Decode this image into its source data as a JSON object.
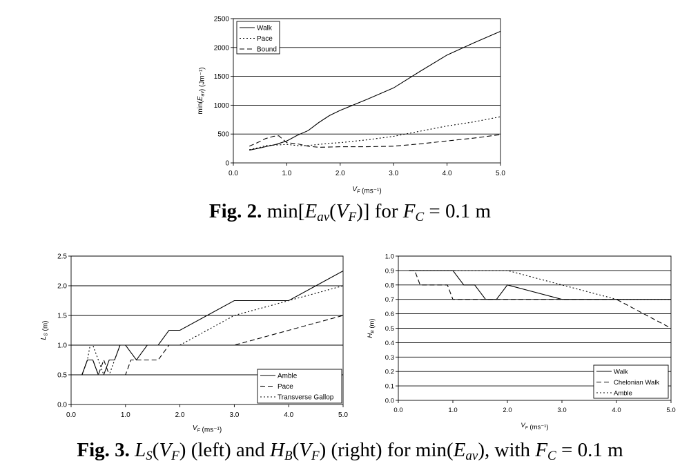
{
  "chart_data": [
    {
      "type": "line",
      "title": "",
      "xlabel": "V_F (ms⁻¹)",
      "ylabel": "min(E_av) (Jm⁻¹)",
      "xlim": [
        0,
        5
      ],
      "ylim": [
        0,
        2500
      ],
      "xticks": [
        "0.0",
        "1.0",
        "2.0",
        "3.0",
        "4.0",
        "5.0"
      ],
      "yticks": [
        "0",
        "500",
        "1000",
        "1500",
        "2000",
        "2500"
      ],
      "grid": "horizontal",
      "legend": "top-left",
      "series": [
        {
          "name": "Walk",
          "style": "solid",
          "points": [
            [
              0.3,
              220
            ],
            [
              0.5,
              260
            ],
            [
              0.7,
              300
            ],
            [
              0.8,
              320
            ],
            [
              0.9,
              350
            ],
            [
              1.0,
              380
            ],
            [
              1.2,
              480
            ],
            [
              1.4,
              560
            ],
            [
              1.6,
              700
            ],
            [
              1.8,
              820
            ],
            [
              2.0,
              910
            ],
            [
              2.5,
              1100
            ],
            [
              3.0,
              1300
            ],
            [
              3.5,
              1590
            ],
            [
              4.0,
              1870
            ],
            [
              4.5,
              2080
            ],
            [
              5.0,
              2280
            ]
          ]
        },
        {
          "name": "Pace",
          "style": "dotted",
          "points": [
            [
              0.3,
              230
            ],
            [
              0.5,
              270
            ],
            [
              0.6,
              300
            ],
            [
              0.8,
              310
            ],
            [
              1.0,
              320
            ],
            [
              1.2,
              300
            ],
            [
              1.4,
              300
            ],
            [
              1.6,
              320
            ],
            [
              1.8,
              340
            ],
            [
              2.0,
              350
            ],
            [
              2.5,
              400
            ],
            [
              3.0,
              460
            ],
            [
              3.5,
              550
            ],
            [
              4.0,
              640
            ],
            [
              4.5,
              710
            ],
            [
              5.0,
              800
            ]
          ]
        },
        {
          "name": "Bound",
          "style": "dashed",
          "points": [
            [
              0.3,
              290
            ],
            [
              0.45,
              350
            ],
            [
              0.6,
              420
            ],
            [
              0.75,
              460
            ],
            [
              0.85,
              470
            ],
            [
              1.0,
              350
            ],
            [
              1.2,
              330
            ],
            [
              1.4,
              290
            ],
            [
              1.6,
              270
            ],
            [
              2.0,
              280
            ],
            [
              2.5,
              280
            ],
            [
              3.0,
              290
            ],
            [
              3.5,
              330
            ],
            [
              4.0,
              380
            ],
            [
              4.5,
              430
            ],
            [
              5.0,
              490
            ]
          ]
        }
      ]
    },
    {
      "type": "line",
      "title": "",
      "xlabel": "V_F (ms⁻¹)",
      "ylabel": "L_S (m)",
      "xlim": [
        0,
        5
      ],
      "ylim": [
        0,
        2.5
      ],
      "xticks": [
        "0.0",
        "1.0",
        "2.0",
        "3.0",
        "4.0",
        "5.0"
      ],
      "yticks": [
        "0.0",
        "0.5",
        "1.0",
        "1.5",
        "2.0",
        "2.5"
      ],
      "grid": "horizontal",
      "legend": "bottom-right",
      "series": [
        {
          "name": "Amble",
          "style": "solid",
          "points": [
            [
              0.2,
              0.5
            ],
            [
              0.3,
              0.75
            ],
            [
              0.4,
              0.75
            ],
            [
              0.5,
              0.5
            ],
            [
              0.6,
              0.5
            ],
            [
              0.7,
              0.75
            ],
            [
              0.8,
              0.75
            ],
            [
              0.9,
              1.0
            ],
            [
              1.0,
              1.0
            ],
            [
              1.2,
              0.75
            ],
            [
              1.4,
              1.0
            ],
            [
              1.6,
              1.0
            ],
            [
              1.8,
              1.25
            ],
            [
              2.0,
              1.25
            ],
            [
              2.5,
              1.5
            ],
            [
              3.0,
              1.75
            ],
            [
              3.5,
              1.75
            ],
            [
              4.0,
              1.75
            ],
            [
              4.5,
              2.0
            ],
            [
              5.0,
              2.25
            ]
          ]
        },
        {
          "name": "Pace",
          "style": "dashed",
          "points": [
            [
              0.2,
              0.5
            ],
            [
              0.3,
              0.75
            ],
            [
              0.4,
              0.75
            ],
            [
              0.5,
              0.5
            ],
            [
              0.6,
              0.75
            ],
            [
              0.7,
              0.5
            ],
            [
              0.8,
              0.5
            ],
            [
              1.0,
              0.5
            ],
            [
              1.1,
              0.75
            ],
            [
              1.2,
              0.75
            ],
            [
              1.6,
              0.75
            ],
            [
              1.8,
              1.0
            ],
            [
              2.0,
              1.0
            ],
            [
              2.5,
              1.0
            ],
            [
              3.0,
              1.0
            ],
            [
              3.5,
              1.125
            ],
            [
              4.0,
              1.25
            ],
            [
              4.5,
              1.375
            ],
            [
              5.0,
              1.5
            ]
          ]
        },
        {
          "name": "Transverse Gallop",
          "style": "dotted",
          "points": [
            [
              0.2,
              0.5
            ],
            [
              0.3,
              0.75
            ],
            [
              0.35,
              1.0
            ],
            [
              0.4,
              1.0
            ],
            [
              0.5,
              0.75
            ],
            [
              0.6,
              0.5
            ],
            [
              0.7,
              0.5
            ],
            [
              0.8,
              0.75
            ],
            [
              0.9,
              1.0
            ],
            [
              1.0,
              1.0
            ],
            [
              1.5,
              1.0
            ],
            [
              2.0,
              1.0
            ],
            [
              2.5,
              1.25
            ],
            [
              3.0,
              1.5
            ],
            [
              3.5,
              1.625
            ],
            [
              4.0,
              1.75
            ],
            [
              4.5,
              1.875
            ],
            [
              5.0,
              2.0
            ]
          ]
        }
      ]
    },
    {
      "type": "line",
      "title": "",
      "xlabel": "V_F (ms⁻¹)",
      "ylabel": "H_B (m)",
      "xlim": [
        0,
        5
      ],
      "ylim": [
        0,
        1
      ],
      "xticks": [
        "0.0",
        "1.0",
        "2.0",
        "3.0",
        "4.0",
        "5.0"
      ],
      "yticks": [
        "0.0",
        "0.1",
        "0.2",
        "0.3",
        "0.4",
        "0.5",
        "0.6",
        "0.7",
        "0.8",
        "0.9",
        "1.0"
      ],
      "grid": "horizontal",
      "legend": "bottom-right",
      "series": [
        {
          "name": "Walk",
          "style": "solid",
          "points": [
            [
              0.2,
              0.9
            ],
            [
              1.0,
              0.9
            ],
            [
              1.2,
              0.8
            ],
            [
              1.4,
              0.8
            ],
            [
              1.6,
              0.7
            ],
            [
              1.8,
              0.7
            ],
            [
              2.0,
              0.8
            ],
            [
              3.0,
              0.7
            ],
            [
              4.0,
              0.7
            ],
            [
              5.0,
              0.7
            ]
          ]
        },
        {
          "name": "Chelonian Walk",
          "style": "dashed",
          "points": [
            [
              0.2,
              0.9
            ],
            [
              0.3,
              0.9
            ],
            [
              0.4,
              0.8
            ],
            [
              0.9,
              0.8
            ],
            [
              1.0,
              0.7
            ],
            [
              3.0,
              0.7
            ],
            [
              4.0,
              0.7
            ],
            [
              5.0,
              0.5
            ]
          ]
        },
        {
          "name": "Amble",
          "style": "dotted",
          "points": [
            [
              0.2,
              0.9
            ],
            [
              2.0,
              0.9
            ],
            [
              3.0,
              0.8
            ],
            [
              4.0,
              0.7
            ],
            [
              5.0,
              0.7
            ]
          ]
        }
      ]
    }
  ],
  "captions": {
    "fig2": {
      "label": "Fig. 2.",
      "text": "min[E_av(V_F)] for F_C = 0.1 m"
    },
    "fig3": {
      "label": "Fig. 3.",
      "text": "L_S(V_F) (left) and H_B(V_F) (right) for min(E_av), with F_C = 0.1 m"
    }
  }
}
